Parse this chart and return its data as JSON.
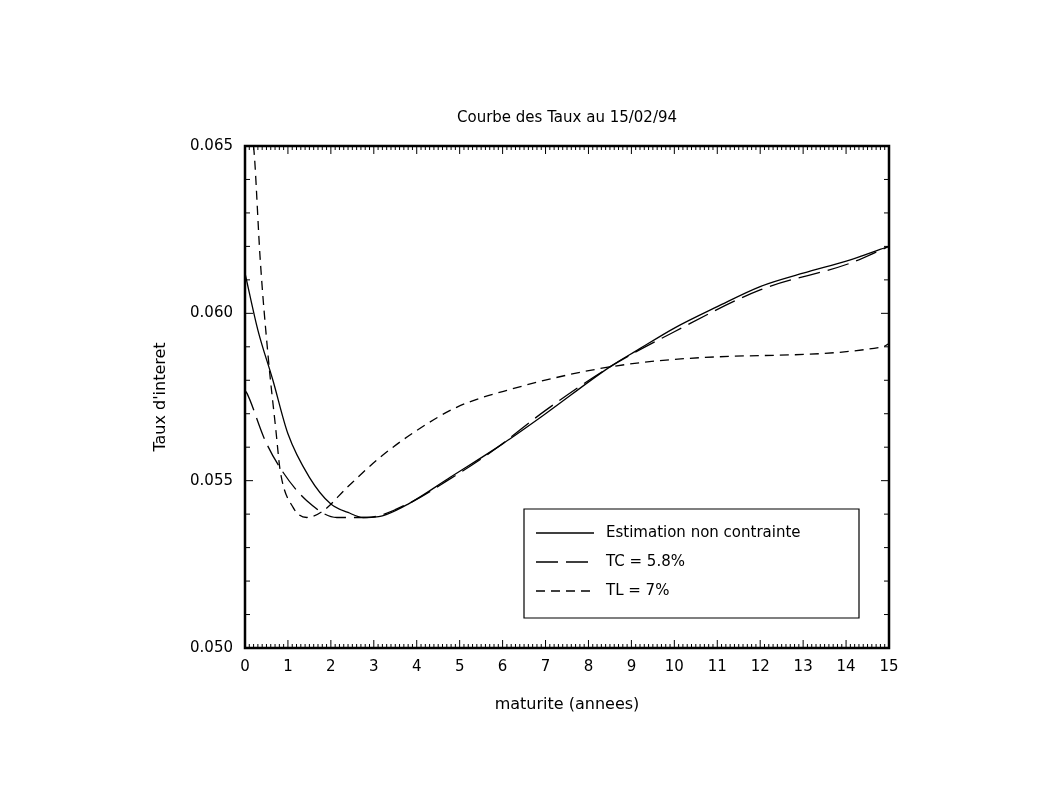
{
  "chart_data": {
    "type": "line",
    "title": "Courbe des Taux au 15/02/94",
    "xlabel": "maturite (annees)",
    "ylabel": "Taux d'interet",
    "xlim": [
      0,
      15
    ],
    "xticks": [
      0,
      1,
      2,
      3,
      4,
      5,
      6,
      7,
      8,
      9,
      10,
      11,
      12,
      13,
      14,
      15
    ],
    "ylim": [
      0.05,
      0.065
    ],
    "yticks": [
      {
        "value": 0.05,
        "label": "0.050"
      },
      {
        "value": 0.055,
        "label": "0.055"
      },
      {
        "value": 0.06,
        "label": "0.060"
      },
      {
        "value": 0.065,
        "label": "0.065"
      }
    ],
    "grid": false,
    "legend": "bottom right",
    "marker": "none",
    "series": [
      {
        "name": "Estimation non contrainte",
        "color": "#000000",
        "line_style": "solid",
        "x": [
          0,
          0.3,
          0.65,
          1,
          1.5,
          2,
          2.4,
          2.75,
          3.2,
          3.8,
          4.78,
          6,
          7,
          8.5,
          9.14,
          10,
          11,
          12,
          13,
          14.1,
          15
        ],
        "values": [
          0.0612,
          0.0595,
          0.058,
          0.0564,
          0.0551,
          0.0543,
          0.05405,
          0.0539,
          0.05395,
          0.0543,
          0.0551,
          0.0561,
          0.057,
          0.0584,
          0.0589,
          0.05956,
          0.0602,
          0.0608,
          0.0612,
          0.0616,
          0.062
        ]
      },
      {
        "name": "TC = 5.8%",
        "color": "#000000",
        "line_style": "dashed",
        "x": [
          0,
          0.05,
          0.47,
          0.86,
          1.44,
          2.14,
          2.84,
          3.78,
          4.71,
          5.78,
          7,
          8.5,
          10,
          12,
          14.1,
          15
        ],
        "values": [
          0.0577,
          0.0576,
          0.0562,
          0.0553,
          0.0544,
          0.0539,
          0.0539,
          0.0543,
          0.055,
          0.0559,
          0.0571,
          0.0584,
          0.05945,
          0.0607,
          0.0615,
          0.062
        ]
      },
      {
        "name": "TL = 7%",
        "color": "#000000",
        "line_style": "dotted",
        "x": [
          0.2,
          0.23,
          0.35,
          0.54,
          0.72,
          0.82,
          1.12,
          1.44,
          1.82,
          2.38,
          3.15,
          4,
          4.94,
          6.1,
          8.5,
          11,
          14.86,
          15
        ],
        "values": [
          0.065,
          0.0645,
          0.0617,
          0.0587,
          0.0565,
          0.0553,
          0.0542,
          0.0539,
          0.0541,
          0.0548,
          0.0557,
          0.0565,
          0.0572,
          0.0577,
          0.0584,
          0.0587,
          0.059,
          0.0591
        ]
      }
    ]
  }
}
